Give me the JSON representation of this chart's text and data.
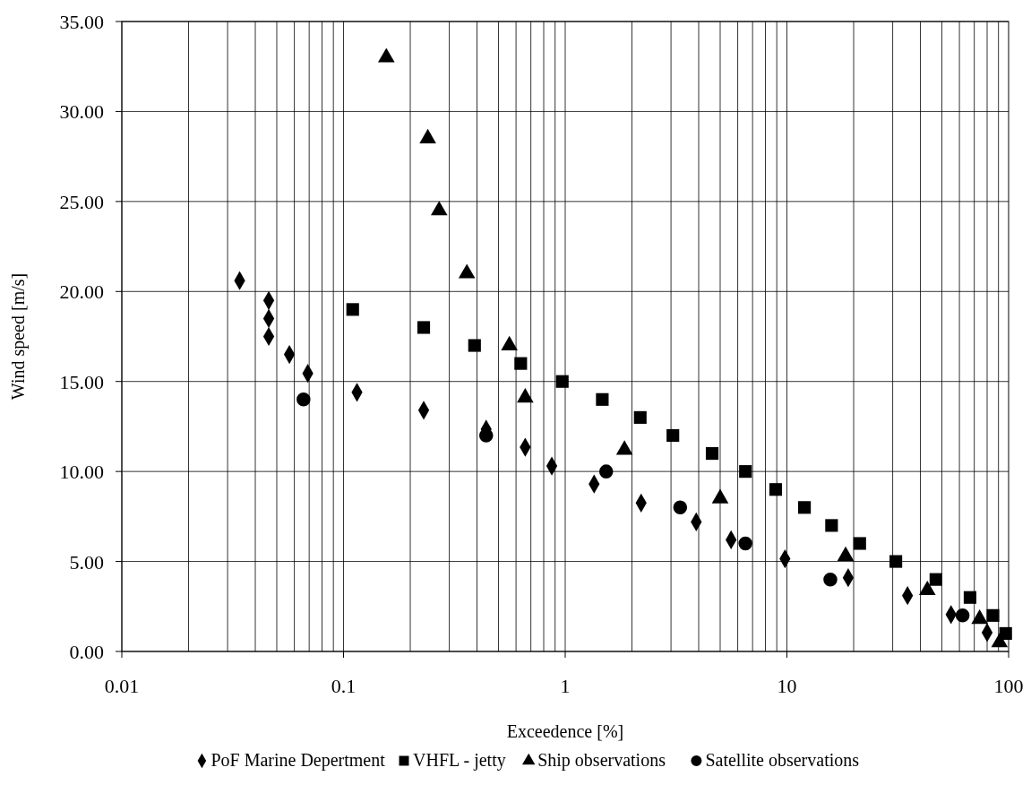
{
  "chart_data": {
    "type": "scatter",
    "xlabel": "Exceedence [%]",
    "ylabel": "Wind speed [m/s]",
    "log": "x",
    "xlim": [
      0.01,
      100
    ],
    "xticks": [
      0.01,
      0.1,
      1,
      10,
      100
    ],
    "ylim": [
      0,
      35
    ],
    "yticks": [
      {
        "value": 0,
        "label": "0.00"
      },
      {
        "value": 5,
        "label": "5.00"
      },
      {
        "value": 10,
        "label": "10.00"
      },
      {
        "value": 15,
        "label": "15.00"
      },
      {
        "value": 20,
        "label": "20.00"
      },
      {
        "value": 25,
        "label": "25.00"
      },
      {
        "value": 30,
        "label": "30.00"
      },
      {
        "value": 35,
        "label": "35.00"
      }
    ],
    "grid": true,
    "legend": "bottom",
    "series": [
      {
        "name": "PoF Marine Depertment",
        "color": "#000000",
        "marker": "diamond",
        "x": [
          0.034,
          0.046,
          0.046,
          0.046,
          0.057,
          0.069,
          0.115,
          0.23,
          0.44,
          0.66,
          0.87,
          1.35,
          2.2,
          3.9,
          5.6,
          9.8,
          18.9,
          35,
          55,
          80
        ],
        "values": [
          20.6,
          19.5,
          18.5,
          17.5,
          16.5,
          15.45,
          14.4,
          13.4,
          12.35,
          11.35,
          10.3,
          9.3,
          8.25,
          7.2,
          6.2,
          5.15,
          4.1,
          3.1,
          2.05,
          1.05
        ]
      },
      {
        "name": "VHFL - jetty",
        "color": "#000000",
        "marker": "square",
        "x": [
          0.11,
          0.23,
          0.39,
          0.63,
          0.97,
          1.47,
          2.18,
          3.06,
          4.6,
          6.5,
          8.9,
          12,
          15.9,
          21.3,
          31,
          47,
          67,
          85,
          97
        ],
        "values": [
          19,
          18,
          17,
          16,
          15,
          14,
          13,
          12,
          11,
          10,
          9,
          8,
          7,
          6,
          5,
          4,
          3,
          2,
          1
        ]
      },
      {
        "name": "Ship observations",
        "color": "#000000",
        "marker": "triangle",
        "x": [
          0.156,
          0.24,
          0.27,
          0.36,
          0.56,
          0.66,
          1.85,
          5.0,
          18.4,
          43,
          74,
          91
        ],
        "values": [
          33,
          28.5,
          24.5,
          21,
          17,
          14.1,
          11.2,
          8.5,
          5.3,
          3.4,
          1.8,
          0.5
        ]
      },
      {
        "name": "Satellite observations",
        "color": "#000000",
        "marker": "circle",
        "x": [
          0.066,
          0.44,
          1.53,
          3.3,
          6.5,
          15.7,
          62
        ],
        "values": [
          14,
          12,
          10,
          8,
          6,
          4,
          2
        ]
      }
    ]
  }
}
